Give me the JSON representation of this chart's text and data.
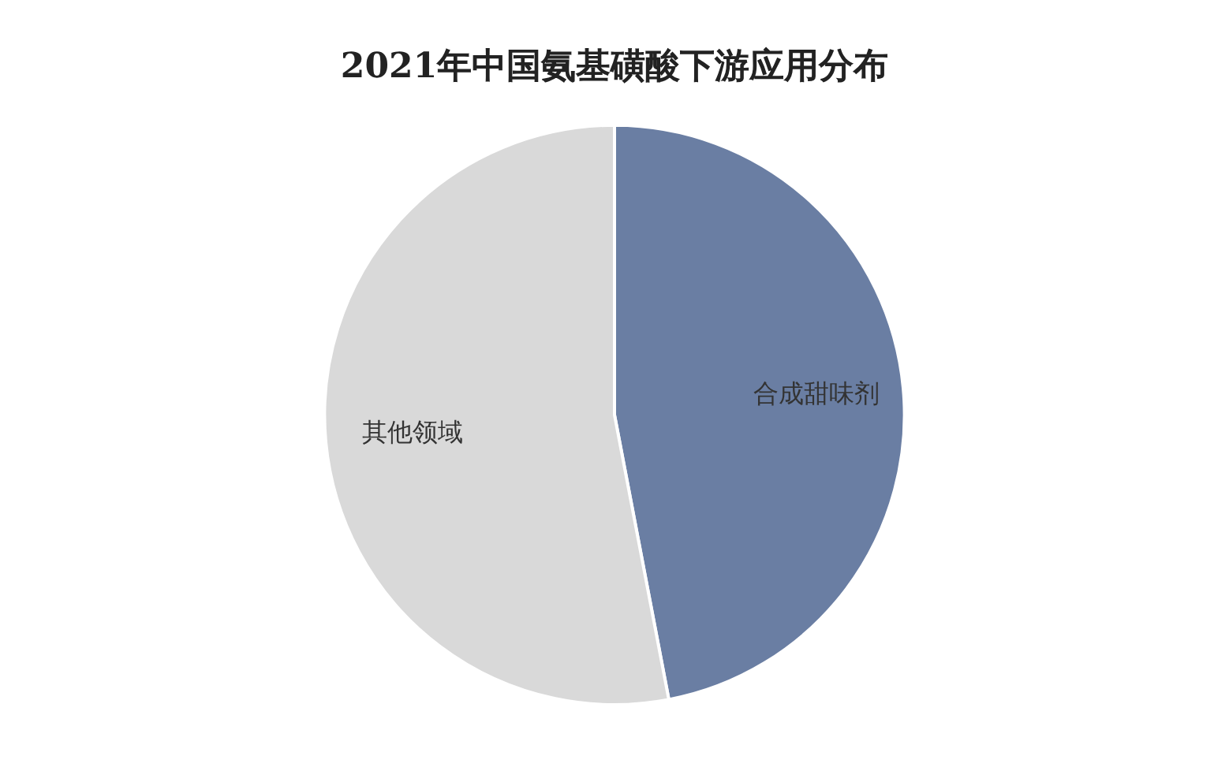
{
  "chart_data": {
    "type": "pie",
    "title": "2021年中国氨基磺酸下游应用分布",
    "categories": [
      "合成甜味剂",
      "其他领域"
    ],
    "values": [
      47,
      53
    ],
    "colors": [
      "#6a7ea3",
      "#d9d9d9"
    ],
    "legend": false
  }
}
